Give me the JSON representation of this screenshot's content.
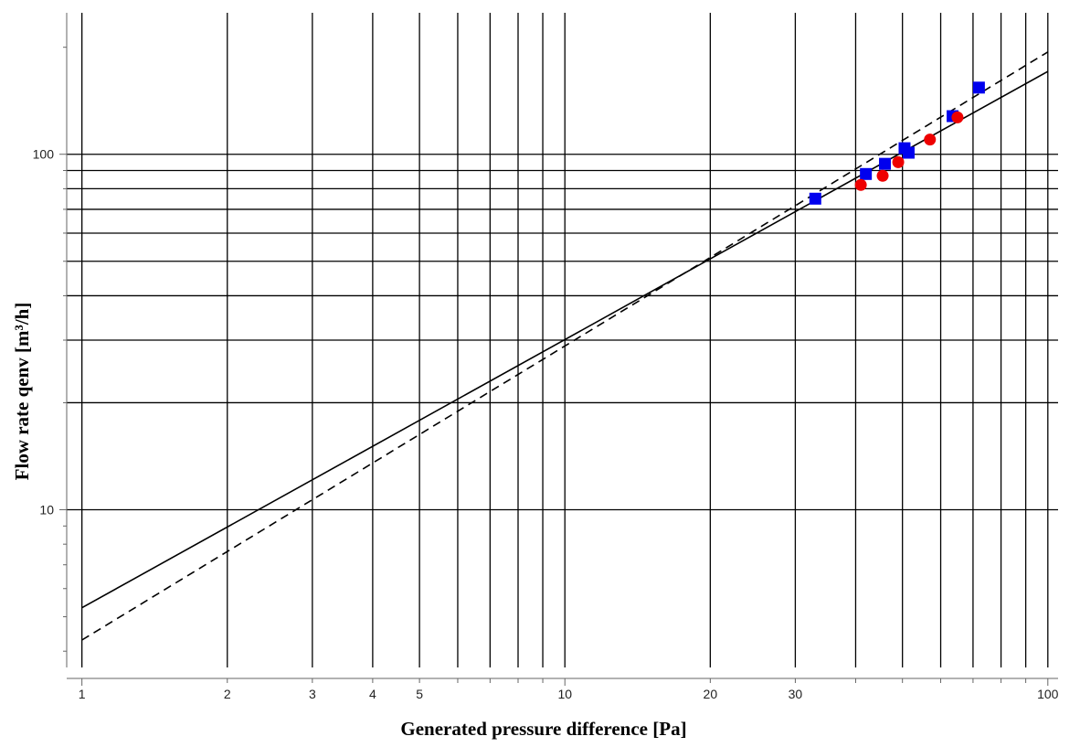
{
  "chart_data": {
    "type": "scatter",
    "xscale": "log",
    "yscale": "log",
    "xlabel": "Generated pressure difference [Pa]",
    "ylabel": "Flow rate qenv [m³/h]",
    "xlim": [
      0.93,
      105
    ],
    "ylim": [
      3.6,
      250
    ],
    "grid": true,
    "x_ticks": [
      1,
      2,
      3,
      4,
      5,
      10,
      20,
      30,
      100
    ],
    "x_tick_labels": [
      "1",
      "2",
      "3",
      "4",
      "5",
      "10",
      "20",
      "30",
      "100"
    ],
    "x_gridlines": [
      1,
      2,
      3,
      4,
      5,
      6,
      7,
      8,
      9,
      10,
      20,
      30,
      40,
      50,
      60,
      70,
      80,
      90,
      100
    ],
    "y_ticks": [
      10,
      100
    ],
    "y_tick_labels": [
      "10",
      "100"
    ],
    "y_gridlines": [
      10,
      20,
      30,
      40,
      50,
      60,
      70,
      80,
      90,
      100
    ],
    "series": [
      {
        "marker": "square",
        "color": "#0000ee",
        "x": [
          33,
          42,
          46,
          50.5,
          51.5,
          63.5,
          72
        ],
        "y": [
          75,
          88,
          94,
          104,
          101,
          128,
          154
        ]
      },
      {
        "marker": "circle",
        "color": "#ee0000",
        "x": [
          41,
          45.5,
          49,
          57,
          65
        ],
        "y": [
          82,
          87,
          95,
          110,
          127
        ]
      },
      {
        "line": "solid",
        "color": "#000000",
        "x": [
          1,
          100
        ],
        "y": [
          5.3,
          171
        ]
      },
      {
        "line": "dashed",
        "color": "#000000",
        "x": [
          1,
          100
        ],
        "y": [
          4.3,
          194
        ]
      }
    ]
  }
}
